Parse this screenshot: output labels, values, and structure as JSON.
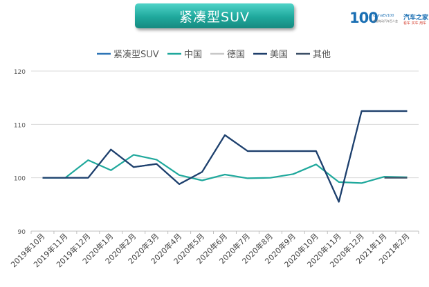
{
  "banner": {
    "title": "紧凑型SUV"
  },
  "logo": {
    "mark": "100",
    "line1": "ChinaEV100",
    "line2": "中国电动汽车百人会",
    "brand": "汽车之家",
    "brand_sub": "看车 买车 用车"
  },
  "chart_data": {
    "type": "line",
    "title": "",
    "xlabel": "",
    "ylabel": "",
    "ylim": [
      90,
      120
    ],
    "yticks": [
      90,
      100,
      110,
      120
    ],
    "grid": true,
    "legend": "top",
    "categories": [
      "2019年10月",
      "2019年11月",
      "2019年12月",
      "2020年1月",
      "2020年2月",
      "2020年3月",
      "2020年4月",
      "2020年5月",
      "2020年6月",
      "2020年7月",
      "2020年8月",
      "2020年9月",
      "2020年10月",
      "2020年11月",
      "2020年12月",
      "2021年1月",
      "2021年2月"
    ],
    "series": [
      {
        "name": "紧凑型SUV",
        "color": "#2e75b6",
        "values": [
          100,
          100,
          100,
          105.3,
          102,
          102.6,
          98.8,
          101.1,
          108,
          105,
          105,
          105,
          105,
          95.5,
          112.5,
          112.5,
          112.5
        ]
      },
      {
        "name": "中国",
        "color": "#1fa89c",
        "values": [
          100,
          100,
          103.3,
          101.4,
          104.3,
          103.4,
          100.5,
          99.5,
          100.6,
          99.9,
          100,
          100.7,
          102.5,
          99.2,
          99,
          100.2,
          100.1
        ]
      },
      {
        "name": "德国",
        "color": "#c8c8c8",
        "values": [
          null,
          null,
          null,
          null,
          null,
          null,
          null,
          null,
          null,
          null,
          null,
          null,
          null,
          null,
          null,
          100,
          100
        ]
      },
      {
        "name": "美国",
        "color": "#1f3f6b",
        "values": [
          100,
          100,
          100,
          105.3,
          102,
          102.6,
          98.8,
          101.1,
          108,
          105,
          105,
          105,
          105,
          95.5,
          112.5,
          112.5,
          112.5
        ]
      },
      {
        "name": "其他",
        "color": "#3c4f66",
        "values": [
          null,
          null,
          null,
          null,
          null,
          null,
          null,
          null,
          null,
          null,
          null,
          null,
          null,
          null,
          null,
          100,
          100
        ]
      }
    ]
  }
}
